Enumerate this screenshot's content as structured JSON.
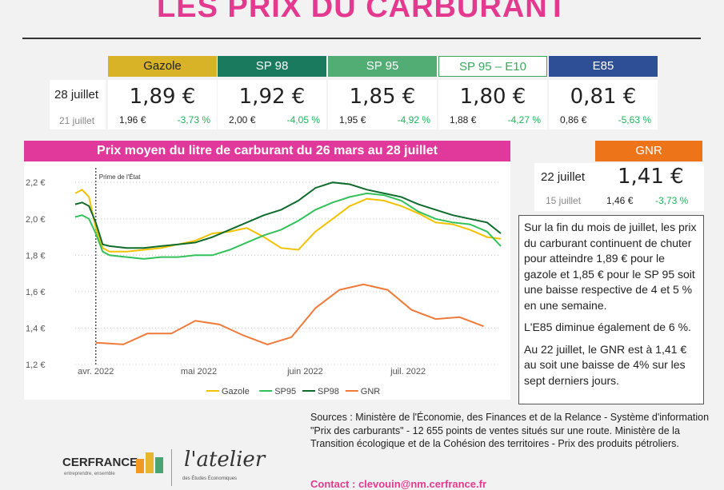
{
  "title": "LES PRIX DU CARBURANT",
  "colors": {
    "gazole": "#d9b327",
    "sp98": "#1a7a5e",
    "sp95": "#52ad74",
    "e10": "#3aa85c",
    "e85": "#2e4f96",
    "gnr": "#ee7419",
    "accent": "#e33a8f",
    "positive": "#1fb35a"
  },
  "fuel_table": {
    "current_date": "28 juillet",
    "previous_date": "21 juillet",
    "fuels": [
      {
        "name": "Gazole",
        "price": "1,89 €",
        "previous": "1,96 €",
        "change": "-3,73 %"
      },
      {
        "name": "SP 98",
        "price": "1,92 €",
        "previous": "2,00 €",
        "change": "-4,05 %"
      },
      {
        "name": "SP 95",
        "price": "1,85 €",
        "previous": "1,95 €",
        "change": "-4,92 %"
      },
      {
        "name": "SP 95 – E10",
        "price": "1,80 €",
        "previous": "1,88 €",
        "change": "-4,27 %"
      },
      {
        "name": "E85",
        "price": "0,81 €",
        "previous": "0,86 €",
        "change": "-5,63 %"
      }
    ]
  },
  "gnr": {
    "name": "GNR",
    "current_date": "22 juillet",
    "previous_date": "15 juillet",
    "price": "1,41 €",
    "previous": "1,46 €",
    "change": "-3,73 %"
  },
  "chart_title": "Prix moyen du litre de carburant du 26 mars au 28 juillet",
  "description": {
    "p1": "Sur la fin du mois de juillet, les prix du carburant continuent de chuter pour atteindre 1,89 € pour le gazole et 1,85 € pour le SP 95 soit une baisse respective de 4 et 5 % en une semaine.",
    "p2": "L'E85 diminue également de 6 %.",
    "p3": "Au 22 juillet, le GNR est à 1,41 € au soit une baisse de 4% sur les sept derniers jours."
  },
  "sources": "Sources : Ministère de l'Économie, des Finances et de la Relance - Système d'information \"Prix des carburants\" - 12 655 points de ventes situés sur une route. Ministère de la Transition écologique et de la Cohésion des territoires - Prix des produits pétroliers.",
  "contact": "Contact : clevouin@nm.cerfrance.fr",
  "logos": {
    "cerfrance": "CERFRANCE",
    "cerfrance_tagline": "entreprendre, ensemble",
    "atelier": "l'atelier",
    "atelier_sub": "des Études Économiques"
  },
  "chart_data": {
    "type": "line",
    "y_ticks": [
      "1,2 €",
      "1,4 €",
      "1,6 €",
      "1,8 €",
      "2,0 €",
      "2,2 €"
    ],
    "ylim": [
      1.2,
      2.28
    ],
    "xlim": [
      0,
      124
    ],
    "x_tick_labels": [
      {
        "day": 6,
        "label": "avr. 2022"
      },
      {
        "day": 36,
        "label": "mai 2022"
      },
      {
        "day": 67,
        "label": "juin 2022"
      },
      {
        "day": 97,
        "label": "juil. 2022"
      }
    ],
    "annotation": {
      "day": 6,
      "label": "Prime de l'État"
    },
    "series": [
      {
        "name": "Gazole",
        "color": "#f2c200",
        "days": [
          0,
          2,
          4,
          6,
          8,
          10,
          15,
          20,
          25,
          30,
          35,
          40,
          45,
          50,
          55,
          60,
          65,
          70,
          75,
          80,
          85,
          90,
          95,
          100,
          105,
          110,
          115,
          120,
          124
        ],
        "values": [
          2.14,
          2.16,
          2.12,
          1.95,
          1.84,
          1.82,
          1.82,
          1.83,
          1.84,
          1.86,
          1.88,
          1.92,
          1.93,
          1.95,
          1.9,
          1.84,
          1.83,
          1.93,
          2.0,
          2.07,
          2.11,
          2.1,
          2.07,
          2.03,
          1.98,
          1.97,
          1.94,
          1.9,
          1.89
        ]
      },
      {
        "name": "SP95",
        "color": "#33c15a",
        "days": [
          0,
          2,
          4,
          6,
          8,
          10,
          15,
          20,
          25,
          30,
          35,
          40,
          45,
          50,
          55,
          60,
          65,
          70,
          75,
          80,
          85,
          90,
          95,
          100,
          105,
          110,
          115,
          120,
          124
        ],
        "values": [
          2.01,
          2.02,
          2.0,
          1.92,
          1.82,
          1.8,
          1.79,
          1.78,
          1.79,
          1.79,
          1.8,
          1.8,
          1.83,
          1.87,
          1.91,
          1.94,
          1.99,
          2.05,
          2.09,
          2.12,
          2.14,
          2.13,
          2.1,
          2.04,
          2.0,
          1.98,
          1.97,
          1.93,
          1.85
        ]
      },
      {
        "name": "SP98",
        "color": "#0f6b2c",
        "days": [
          0,
          2,
          4,
          6,
          8,
          10,
          15,
          20,
          25,
          30,
          35,
          40,
          45,
          50,
          55,
          60,
          65,
          70,
          75,
          80,
          85,
          90,
          95,
          100,
          105,
          110,
          115,
          120,
          124
        ],
        "values": [
          2.08,
          2.09,
          2.07,
          1.98,
          1.86,
          1.85,
          1.84,
          1.84,
          1.85,
          1.86,
          1.87,
          1.9,
          1.94,
          1.98,
          2.02,
          2.05,
          2.1,
          2.17,
          2.2,
          2.19,
          2.16,
          2.14,
          2.12,
          2.08,
          2.05,
          2.02,
          2.0,
          1.98,
          1.92
        ]
      },
      {
        "name": "GNR",
        "color": "#ef7a3a",
        "days": [
          6,
          14,
          21,
          28,
          35,
          42,
          49,
          56,
          63,
          70,
          77,
          84,
          91,
          98,
          105,
          112,
          119
        ],
        "values": [
          1.32,
          1.31,
          1.37,
          1.37,
          1.44,
          1.42,
          1.36,
          1.31,
          1.35,
          1.51,
          1.61,
          1.64,
          1.61,
          1.5,
          1.45,
          1.46,
          1.41
        ]
      }
    ]
  }
}
